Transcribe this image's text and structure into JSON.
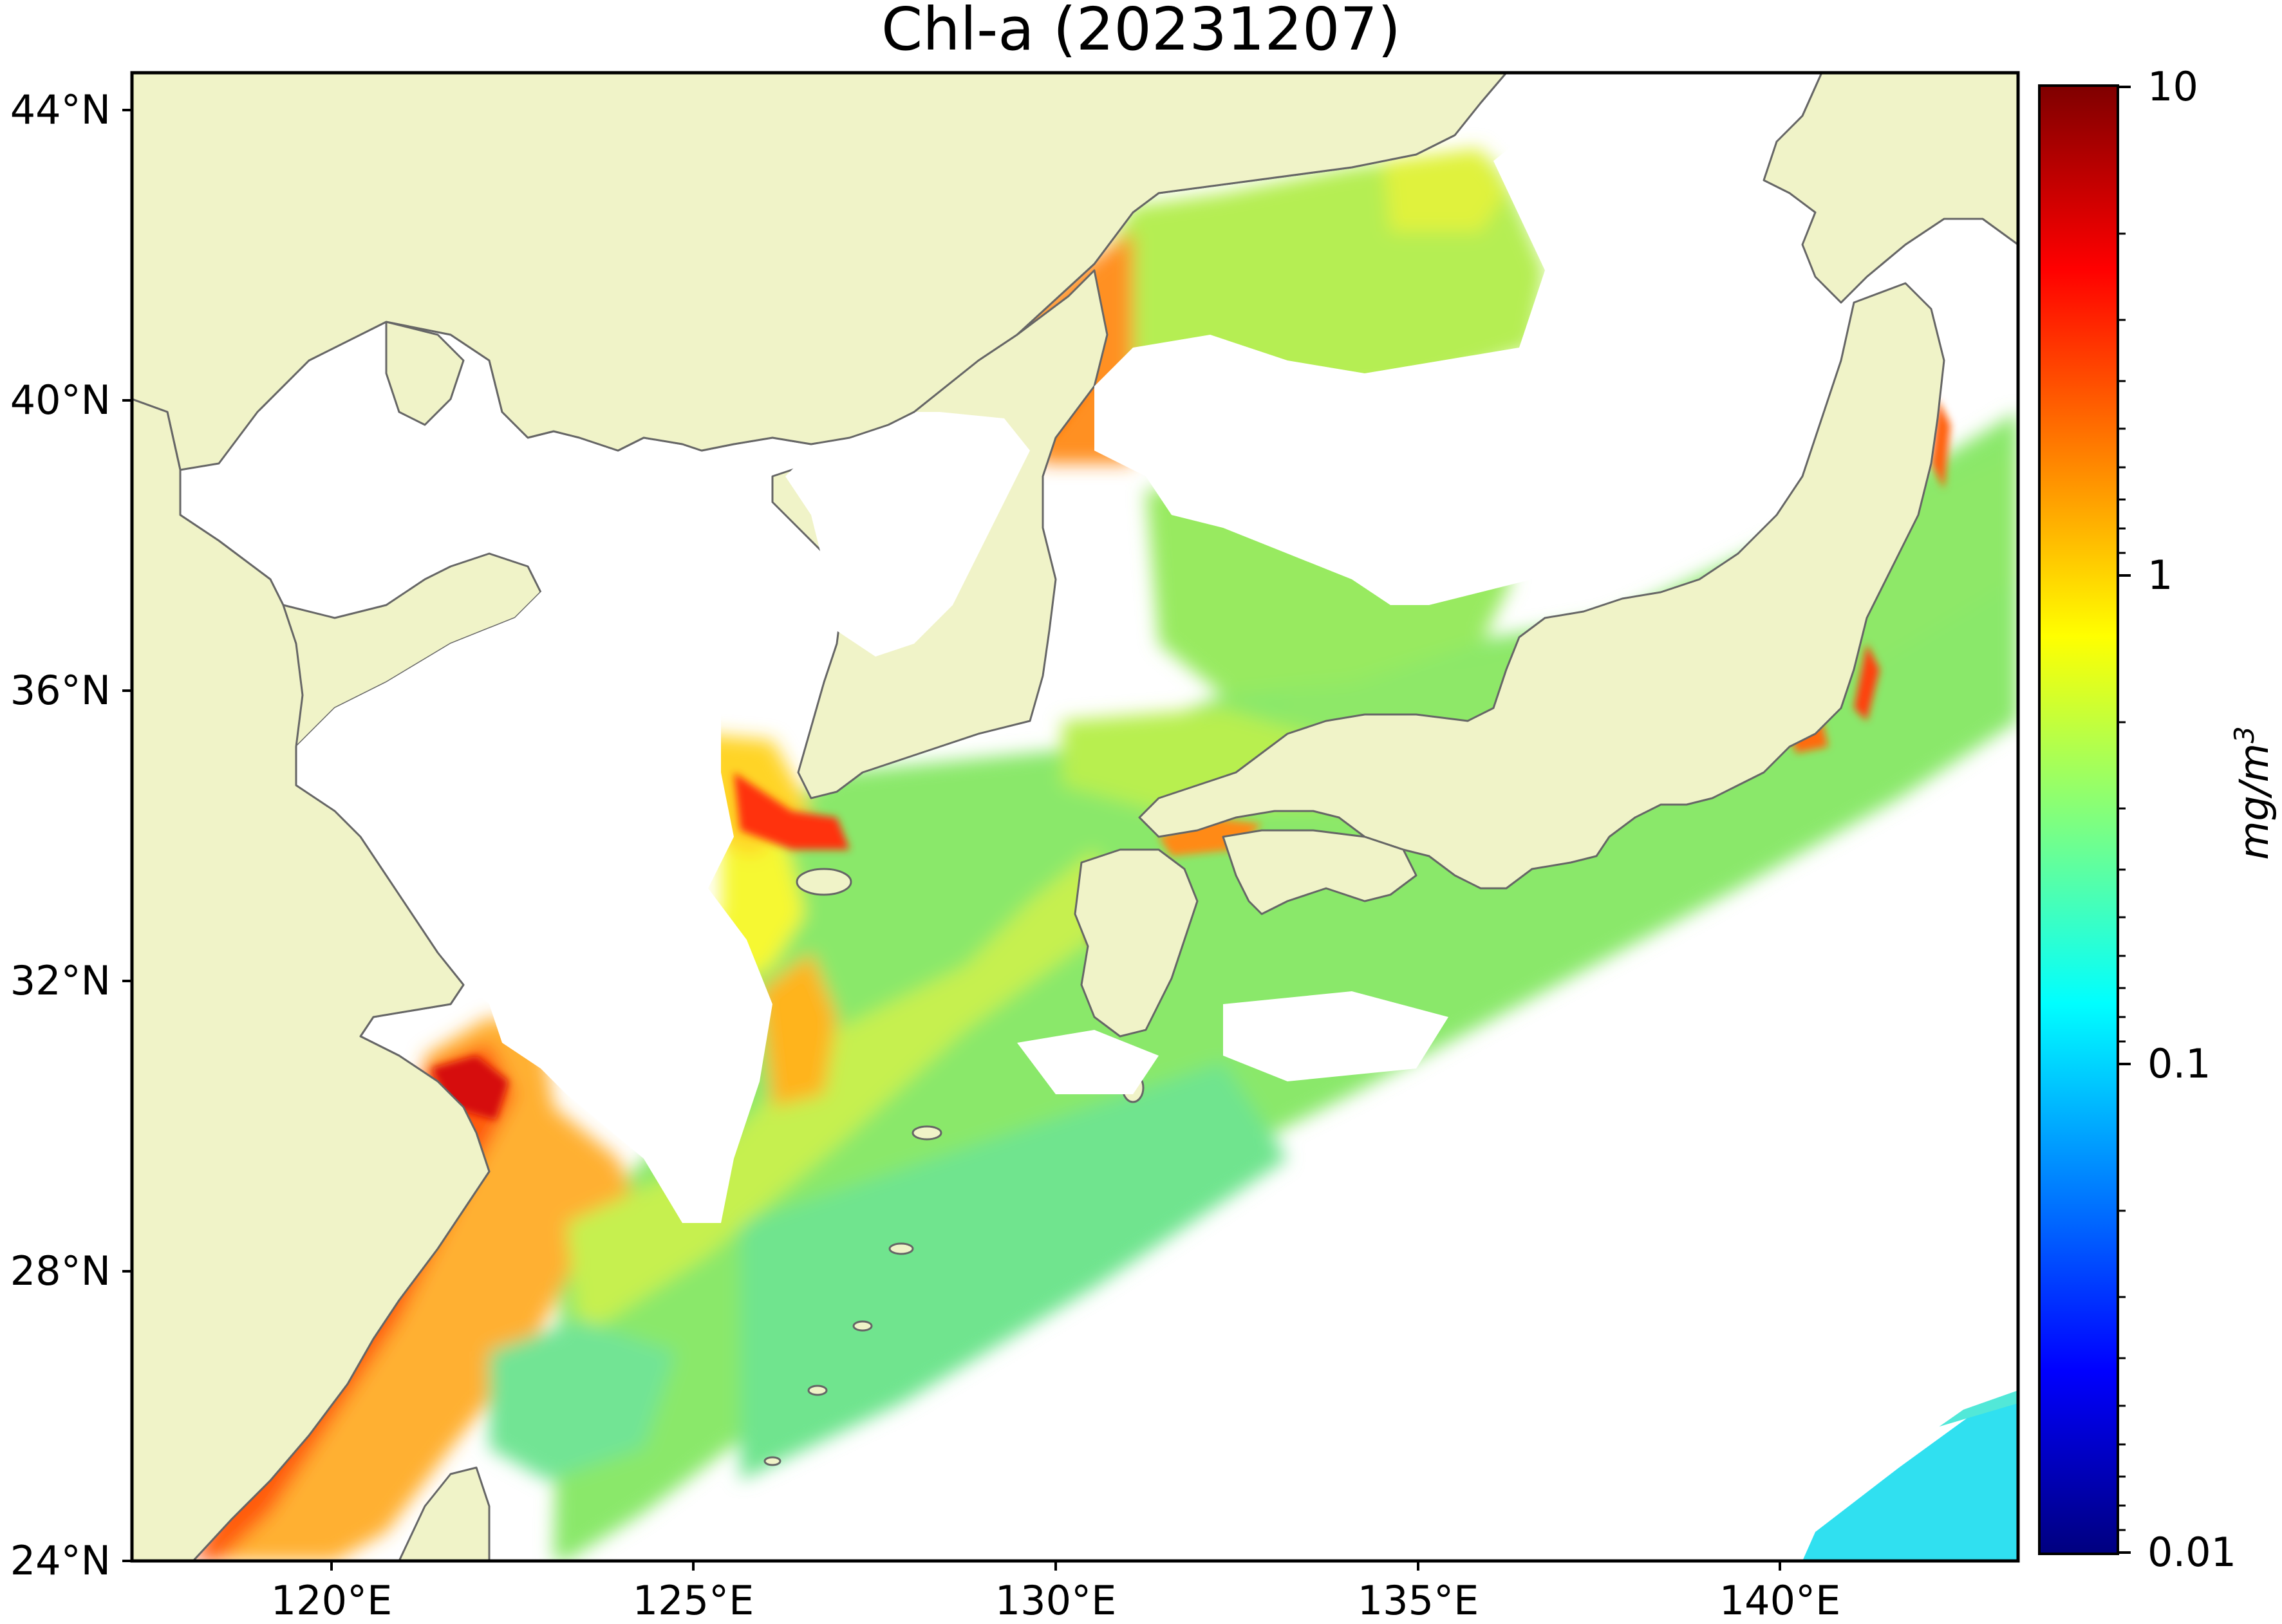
{
  "title": "Chl-a (20231207)",
  "lat_ticks": [
    {
      "label": "44°N",
      "value": 44
    },
    {
      "label": "40°N",
      "value": 40
    },
    {
      "label": "36°N",
      "value": 36
    },
    {
      "label": "32°N",
      "value": 32
    },
    {
      "label": "28°N",
      "value": 28
    },
    {
      "label": "24°N",
      "value": 24
    }
  ],
  "lon_ticks": [
    {
      "label": "120°E",
      "value": 120
    },
    {
      "label": "125°E",
      "value": 125
    },
    {
      "label": "130°E",
      "value": 130
    },
    {
      "label": "135°E",
      "value": 135
    },
    {
      "label": "140°E",
      "value": 140
    }
  ],
  "colorbar": {
    "unit": "mg/m",
    "unit_superscript": "3",
    "scale": "log",
    "range": [
      0.01,
      10
    ],
    "ticks": [
      {
        "label": "10",
        "value": 10
      },
      {
        "label": "1",
        "value": 1
      },
      {
        "label": "0.1",
        "value": 0.1
      },
      {
        "label": "0.01",
        "value": 0.01
      }
    ],
    "colormap": [
      "#00007f",
      "#0000ff",
      "#007fff",
      "#00ffff",
      "#7fff7f",
      "#ffff00",
      "#ff7f00",
      "#ff0000",
      "#7f0000"
    ]
  },
  "colors": {
    "land": "#f0f3c8",
    "coastline": "#666666",
    "no_data": "#ffffff"
  }
}
